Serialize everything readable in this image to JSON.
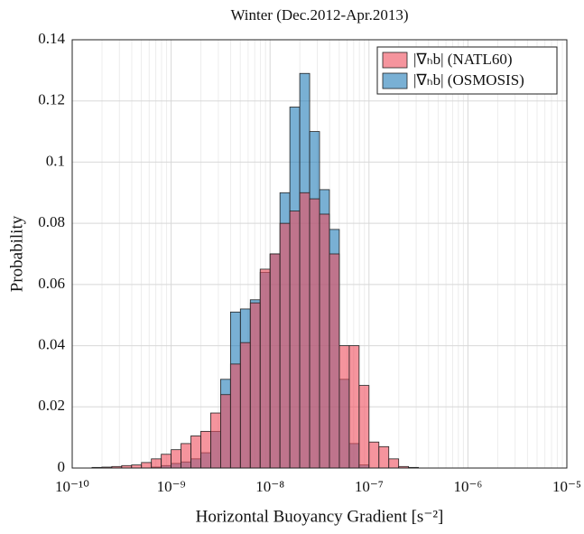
{
  "chart_data": {
    "type": "histogram",
    "title": "Winter (Dec.2012-Apr.2013)",
    "x_label": "Horizontal Buoyancy Gradient [s⁻²]",
    "y_label": "Probability",
    "bins": [
      1.585e-10,
      1.995e-10,
      2.512e-10,
      3.162e-10,
      3.981e-10,
      5.012e-10,
      6.31e-10,
      7.943e-10,
      1e-09,
      1.259e-09,
      1.585e-09,
      1.995e-09,
      2.512e-09,
      3.162e-09,
      3.981e-09,
      5.012e-09,
      6.31e-09,
      7.943e-09,
      1e-08,
      1.259e-08,
      1.585e-08,
      1.995e-08,
      2.512e-08,
      3.162e-08,
      3.981e-08,
      5.012e-08,
      6.31e-08,
      7.943e-08,
      1e-07,
      1.259e-07,
      1.585e-07,
      1.995e-07,
      2.512e-07,
      3.162e-07
    ],
    "series": [
      {
        "name": "|∇ₕb| (NATL60)",
        "color": "#ee4d5c",
        "values": [
          0.0002,
          0.0003,
          0.0005,
          0.0008,
          0.001,
          0.0018,
          0.003,
          0.0045,
          0.006,
          0.008,
          0.0105,
          0.012,
          0.018,
          0.024,
          0.034,
          0.041,
          0.054,
          0.065,
          0.07,
          0.08,
          0.084,
          0.09,
          0.088,
          0.083,
          0.07,
          0.04,
          0.04,
          0.027,
          0.0085,
          0.007,
          0.003,
          0.0005,
          0.0002
        ]
      },
      {
        "name": "|∇ₕb| (OSMOSIS)",
        "color": "#1f7bb8",
        "values": [
          0,
          0,
          0,
          0,
          0,
          0,
          0.0003,
          0.0008,
          0.0015,
          0.002,
          0.003,
          0.005,
          0.012,
          0.029,
          0.051,
          0.052,
          0.055,
          0.064,
          0.07,
          0.09,
          0.118,
          0.129,
          0.11,
          0.091,
          0.078,
          0.029,
          0.008,
          0.001,
          0,
          0,
          0,
          0,
          0
        ]
      }
    ],
    "xlim": [
      1e-10,
      1e-05
    ],
    "x_log": true,
    "xticks": [
      {
        "value": 1e-10,
        "label": "10⁻¹⁰"
      },
      {
        "value": 1e-09,
        "label": "10⁻⁹"
      },
      {
        "value": 1e-08,
        "label": "10⁻⁸"
      },
      {
        "value": 1e-07,
        "label": "10⁻⁷"
      },
      {
        "value": 1e-06,
        "label": "10⁻⁶"
      },
      {
        "value": 1e-05,
        "label": "10⁻⁵"
      }
    ],
    "ylim": [
      0,
      0.14
    ],
    "yticks": [
      0,
      0.02,
      0.04,
      0.06,
      0.08,
      0.1,
      0.12,
      0.14
    ],
    "grid": true,
    "legend": "northeast"
  }
}
